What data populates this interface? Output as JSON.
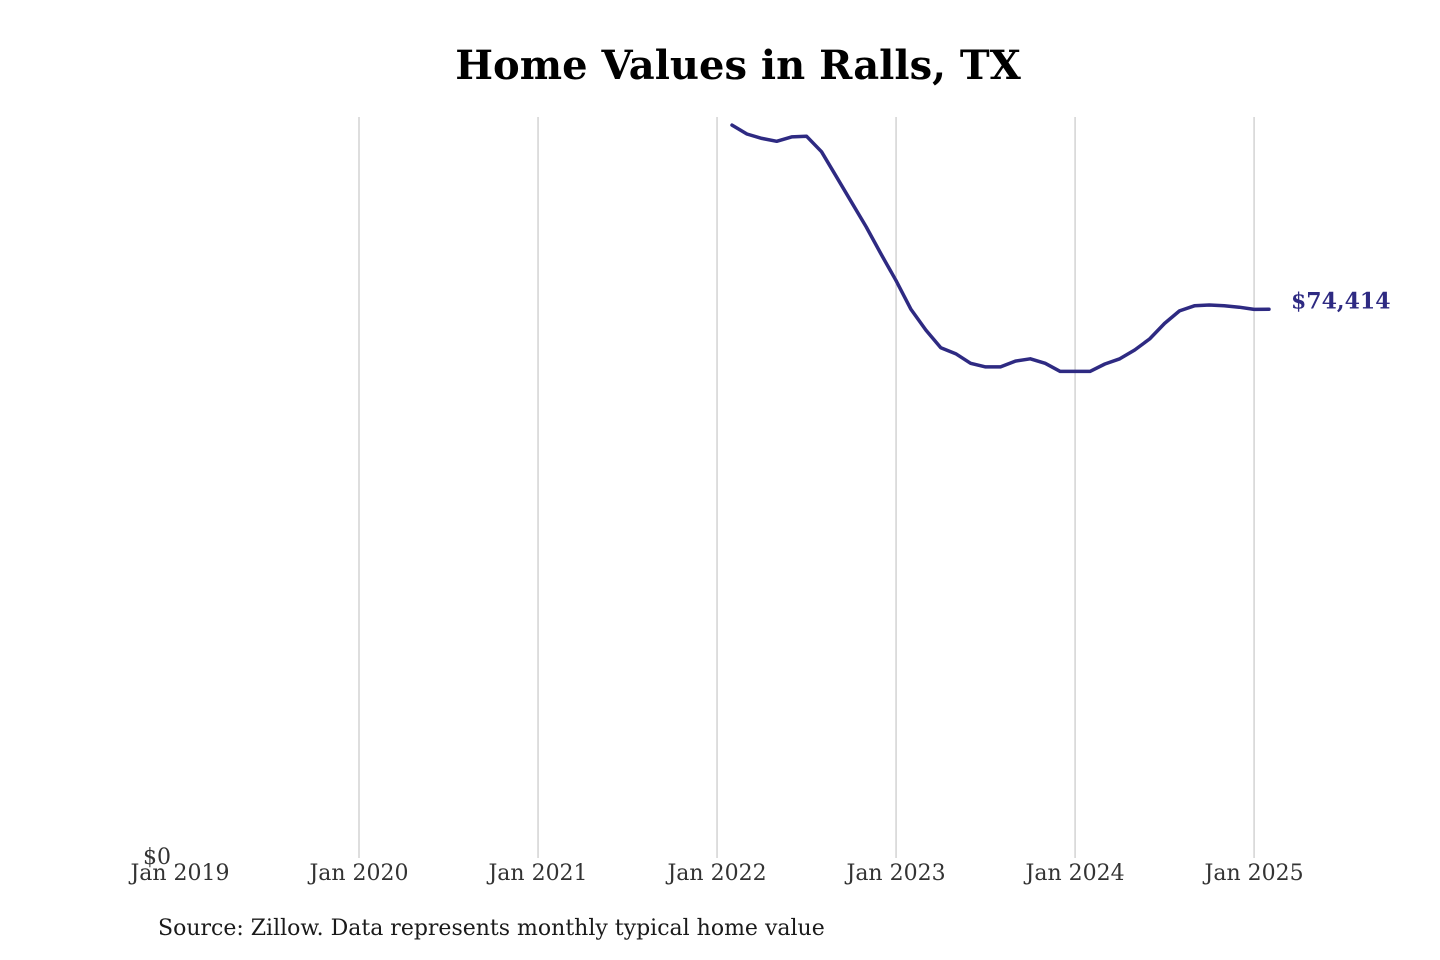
{
  "chart_data": {
    "type": "line",
    "title": "Home Values in Ralls, TX",
    "xlabel": "",
    "ylabel": "",
    "source": "Source: Zillow. Data represents monthly typical home value",
    "x_ticks": [
      "Jan 2019",
      "Jan 2020",
      "Jan 2021",
      "Jan 2022",
      "Jan 2023",
      "Jan 2024",
      "Jan 2025"
    ],
    "y_ticks": [
      "$0"
    ],
    "xlim": [
      "2019-01",
      "2025-02"
    ],
    "ylim": [
      0,
      100500
    ],
    "grid": "vertical",
    "line_color": "#2e2a82",
    "grid_color": "#c8c8c8",
    "end_label": "$74,414",
    "series": [
      {
        "x": [
          "2022-02",
          "2022-03",
          "2022-04",
          "2022-05",
          "2022-06",
          "2022-07",
          "2022-08",
          "2022-09",
          "2022-10",
          "2022-11",
          "2022-12",
          "2023-01",
          "2023-02",
          "2023-03",
          "2023-04",
          "2023-05",
          "2023-06",
          "2023-07",
          "2023-08",
          "2023-09",
          "2023-10",
          "2023-11",
          "2023-12",
          "2024-01",
          "2024-02",
          "2024-03",
          "2024-04",
          "2024-05",
          "2024-06",
          "2024-07",
          "2024-08",
          "2024-09",
          "2024-10",
          "2024-11",
          "2024-12",
          "2025-01",
          "2025-02"
        ],
        "values": [
          99400,
          98200,
          97600,
          97200,
          97800,
          97900,
          95800,
          92400,
          89000,
          85600,
          81900,
          78300,
          74400,
          71600,
          69200,
          68400,
          67100,
          66600,
          66600,
          67400,
          67700,
          67100,
          66000,
          66000,
          66000,
          67000,
          67700,
          68900,
          70400,
          72500,
          74200,
          74900,
          75000,
          74900,
          74700,
          74400,
          74414
        ]
      }
    ]
  }
}
